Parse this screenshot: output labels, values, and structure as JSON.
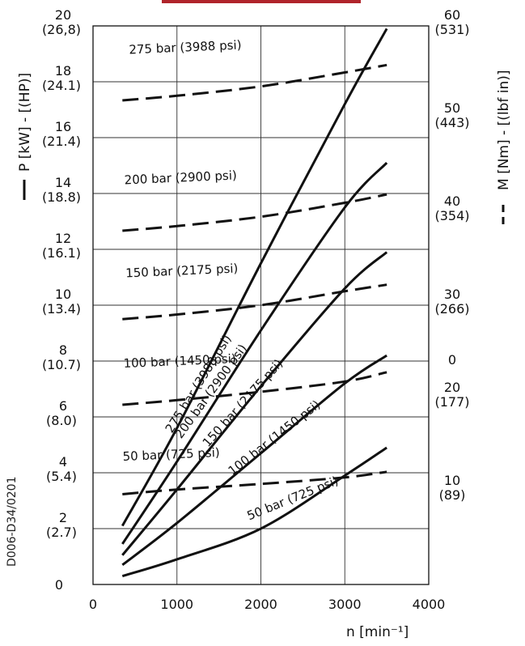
{
  "chart_data": {
    "type": "line",
    "xlabel": "n [min⁻¹]",
    "left_axis_title": "P [kW] - [(HP)]",
    "right_axis_title": "M [Nm] - [(lbf in)]",
    "drawing_code": "D006-D34/0201",
    "xlim": [
      0,
      4000
    ],
    "x_ticks": [
      "0",
      "1000",
      "2000",
      "3000",
      "4000"
    ],
    "ylim_left": [
      0,
      20
    ],
    "ylim_right": [
      0,
      60
    ],
    "left_ticks": [
      {
        "v": 0,
        "kw": "0",
        "hp": ""
      },
      {
        "v": 2,
        "kw": "2",
        "hp": "(2.7)"
      },
      {
        "v": 4,
        "kw": "4",
        "hp": "(5.4)"
      },
      {
        "v": 6,
        "kw": "6",
        "hp": "(8.0)"
      },
      {
        "v": 8,
        "kw": "8",
        "hp": "(10.7)"
      },
      {
        "v": 10,
        "kw": "10",
        "hp": "(13.4)"
      },
      {
        "v": 12,
        "kw": "12",
        "hp": "(16.1)"
      },
      {
        "v": 14,
        "kw": "14",
        "hp": "(18.8)"
      },
      {
        "v": 16,
        "kw": "16",
        "hp": "(21.4)"
      },
      {
        "v": 18,
        "kw": "18",
        "hp": "(24.1)"
      },
      {
        "v": 20,
        "kw": "20",
        "hp": "(26,8)"
      }
    ],
    "right_ticks": [
      {
        "v": 0,
        "nm": "0",
        "lbf": ""
      },
      {
        "v": 10,
        "nm": "10",
        "lbf": "(89)"
      },
      {
        "v": 20,
        "nm": "20",
        "lbf": "(177)"
      },
      {
        "v": 30,
        "nm": "30",
        "lbf": "(266)"
      },
      {
        "v": 40,
        "nm": "40",
        "lbf": "(354)"
      },
      {
        "v": 50,
        "nm": "50",
        "lbf": "(443)"
      },
      {
        "v": 60,
        "nm": "60",
        "lbf": "(531)"
      }
    ],
    "power_series": [
      {
        "name": "275 bar (3988 psi)",
        "x": [
          350,
          1000,
          2000,
          3000,
          3500
        ],
        "y": [
          2.1,
          5.6,
          11.5,
          17.2,
          19.9
        ]
      },
      {
        "name": "200 bar (2900 psi)",
        "x": [
          350,
          1000,
          2000,
          3000,
          3500
        ],
        "y": [
          1.45,
          4.4,
          9.1,
          13.5,
          15.1
        ]
      },
      {
        "name": "150 bar (2175 psi)",
        "x": [
          350,
          1000,
          2000,
          3000,
          3500
        ],
        "y": [
          1.05,
          3.4,
          7.1,
          10.6,
          11.9
        ]
      },
      {
        "name": "100 bar (1450 psi)",
        "x": [
          350,
          1000,
          2000,
          3000,
          3500
        ],
        "y": [
          0.7,
          2.2,
          4.7,
          7.2,
          8.2
        ]
      },
      {
        "name": "50 bar (725 psi)",
        "x": [
          350,
          1000,
          2000,
          3000,
          3500
        ],
        "y": [
          0.3,
          0.9,
          2.0,
          3.9,
          4.9
        ]
      }
    ],
    "torque_series": [
      {
        "name": "275 bar (3988 psi)",
        "x": [
          350,
          1000,
          2000,
          3000,
          3500
        ],
        "y": [
          52.0,
          52.5,
          53.5,
          55.0,
          55.8
        ]
      },
      {
        "name": "200 bar (2900 psi)",
        "x": [
          350,
          1000,
          2000,
          3000,
          3500
        ],
        "y": [
          38.0,
          38.5,
          39.5,
          41.0,
          41.9
        ]
      },
      {
        "name": "150 bar (2175 psi)",
        "x": [
          350,
          1000,
          2000,
          3000,
          3500
        ],
        "y": [
          28.5,
          29.0,
          30.0,
          31.5,
          32.2
        ]
      },
      {
        "name": "100 bar (1450 psi)",
        "x": [
          350,
          1000,
          2000,
          3000,
          3500
        ],
        "y": [
          19.3,
          19.8,
          20.7,
          21.8,
          22.8
        ]
      },
      {
        "name": "50 bar (725 psi)",
        "x": [
          350,
          1000,
          2000,
          3000,
          3500
        ],
        "y": [
          9.7,
          10.2,
          10.8,
          11.5,
          12.1
        ]
      }
    ],
    "legend": {
      "power": "solid line",
      "torque": "dashed line"
    },
    "grid": true
  }
}
